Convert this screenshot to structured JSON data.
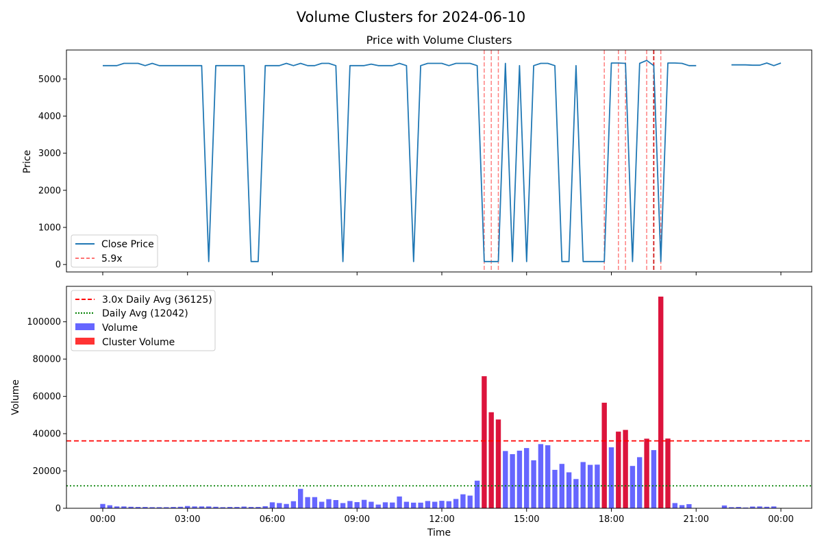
{
  "chart_data": [
    {
      "type": "line",
      "title": "Price with Volume Clusters",
      "ylabel": "Price",
      "ylim": [
        -200,
        5780
      ],
      "yticks": [
        0,
        1000,
        2000,
        3000,
        4000,
        5000
      ],
      "grid": false,
      "legend": {
        "placement": "lower-left",
        "entries": [
          "Close Price",
          "5.9x"
        ]
      },
      "series": [
        {
          "name": "Close Price",
          "color": "#1f77b4",
          "points": [
            [
              "00:00",
              5360
            ],
            [
              "00:15",
              5360
            ],
            [
              "00:30",
              5360
            ],
            [
              "00:45",
              5420
            ],
            [
              "01:00",
              5420
            ],
            [
              "01:15",
              5420
            ],
            [
              "01:30",
              5360
            ],
            [
              "01:45",
              5420
            ],
            [
              "02:00",
              5360
            ],
            [
              "02:15",
              5360
            ],
            [
              "02:30",
              5360
            ],
            [
              "02:45",
              5360
            ],
            [
              "03:00",
              5360
            ],
            [
              "03:15",
              5360
            ],
            [
              "03:30",
              5360
            ],
            [
              "03:45",
              80
            ],
            [
              "04:00",
              5360
            ],
            [
              "04:15",
              5360
            ],
            [
              "04:30",
              5360
            ],
            [
              "04:45",
              5360
            ],
            [
              "05:00",
              5360
            ],
            [
              "05:15",
              80
            ],
            [
              "05:30",
              80
            ],
            [
              "05:45",
              5360
            ],
            [
              "06:00",
              5360
            ],
            [
              "06:15",
              5360
            ],
            [
              "06:30",
              5420
            ],
            [
              "06:45",
              5360
            ],
            [
              "07:00",
              5420
            ],
            [
              "07:15",
              5360
            ],
            [
              "07:30",
              5360
            ],
            [
              "07:45",
              5420
            ],
            [
              "08:00",
              5420
            ],
            [
              "08:15",
              5360
            ],
            [
              "08:30",
              80
            ],
            [
              "08:45",
              5360
            ],
            [
              "09:00",
              5360
            ],
            [
              "09:15",
              5360
            ],
            [
              "09:30",
              5400
            ],
            [
              "09:45",
              5360
            ],
            [
              "10:00",
              5360
            ],
            [
              "10:15",
              5360
            ],
            [
              "10:30",
              5420
            ],
            [
              "10:45",
              5360
            ],
            [
              "11:00",
              80
            ],
            [
              "11:15",
              5360
            ],
            [
              "11:30",
              5420
            ],
            [
              "11:45",
              5420
            ],
            [
              "12:00",
              5420
            ],
            [
              "12:15",
              5360
            ],
            [
              "12:30",
              5420
            ],
            [
              "12:45",
              5420
            ],
            [
              "13:00",
              5420
            ],
            [
              "13:15",
              5360
            ],
            [
              "13:30",
              80
            ],
            [
              "13:45",
              80
            ],
            [
              "14:00",
              80
            ],
            [
              "14:15",
              5420
            ],
            [
              "14:30",
              80
            ],
            [
              "14:45",
              5360
            ],
            [
              "15:00",
              80
            ],
            [
              "15:15",
              5360
            ],
            [
              "15:30",
              5420
            ],
            [
              "15:45",
              5420
            ],
            [
              "16:00",
              5360
            ],
            [
              "16:15",
              80
            ],
            [
              "16:30",
              80
            ],
            [
              "16:45",
              5360
            ],
            [
              "17:00",
              80
            ],
            [
              "17:15",
              80
            ],
            [
              "17:30",
              80
            ],
            [
              "17:45",
              80
            ],
            [
              "18:00",
              5430
            ],
            [
              "18:15",
              5430
            ],
            [
              "18:30",
              5420
            ],
            [
              "18:45",
              80
            ],
            [
              "19:00",
              5420
            ],
            [
              "19:15",
              5500
            ],
            [
              "19:30",
              5360
            ],
            [
              "19:45",
              80
            ],
            [
              "20:00",
              5430
            ],
            [
              "20:15",
              5430
            ],
            [
              "20:30",
              5420
            ],
            [
              "20:45",
              5360
            ],
            [
              "21:00",
              5360
            ],
            [
              "21:15",
              null
            ],
            [
              "21:30",
              null
            ],
            [
              "21:45",
              null
            ],
            [
              "22:00",
              null
            ],
            [
              "22:15",
              5380
            ],
            [
              "22:30",
              5380
            ],
            [
              "22:45",
              5380
            ],
            [
              "23:00",
              5370
            ],
            [
              "23:15",
              5370
            ],
            [
              "23:30",
              5430
            ],
            [
              "23:45",
              5360
            ],
            [
              "24:00",
              5430
            ]
          ]
        }
      ],
      "cluster_lines": {
        "name": "5.9x",
        "color": "#ff0000",
        "times": [
          "13:45",
          "14:00",
          "14:15",
          "18:00",
          "18:30",
          "18:45",
          "19:30",
          "19:45",
          "20:00"
        ],
        "highlight_time": "19:45"
      }
    },
    {
      "type": "bar",
      "ylabel": "Volume",
      "xlabel": "Time",
      "ylim": [
        0,
        119000
      ],
      "yticks": [
        0,
        20000,
        40000,
        60000,
        80000,
        100000
      ],
      "xticks": [
        "00:00",
        "03:00",
        "06:00",
        "09:00",
        "12:00",
        "15:00",
        "18:00",
        "21:00",
        "00:00"
      ],
      "grid": false,
      "legend": {
        "placement": "top-left",
        "entries": [
          "3.0x Daily Avg (36125)",
          "Daily Avg (12042)",
          "Volume",
          "Cluster Volume"
        ]
      },
      "reference_lines": [
        {
          "name": "3.0x Daily Avg (36125)",
          "value": 36125,
          "color": "#ff0000",
          "style": "dashed"
        },
        {
          "name": "Daily Avg (12042)",
          "value": 12042,
          "color": "#008000",
          "style": "dotted"
        }
      ],
      "colors": {
        "volume": "#6666ff",
        "cluster": "#dc143c",
        "cluster_legend": "#ff3333"
      },
      "bars": [
        [
          "00:00",
          2300,
          0
        ],
        [
          "00:15",
          1600,
          0
        ],
        [
          "00:30",
          1000,
          0
        ],
        [
          "00:45",
          1000,
          0
        ],
        [
          "01:00",
          800,
          0
        ],
        [
          "01:15",
          700,
          0
        ],
        [
          "01:30",
          700,
          0
        ],
        [
          "01:45",
          600,
          0
        ],
        [
          "02:00",
          600,
          0
        ],
        [
          "02:15",
          600,
          0
        ],
        [
          "02:30",
          700,
          0
        ],
        [
          "02:45",
          800,
          0
        ],
        [
          "03:00",
          1200,
          0
        ],
        [
          "03:15",
          1000,
          0
        ],
        [
          "03:30",
          1000,
          0
        ],
        [
          "03:45",
          1000,
          0
        ],
        [
          "04:00",
          800,
          0
        ],
        [
          "04:15",
          600,
          0
        ],
        [
          "04:30",
          700,
          0
        ],
        [
          "04:45",
          700,
          0
        ],
        [
          "05:00",
          900,
          0
        ],
        [
          "05:15",
          700,
          0
        ],
        [
          "05:30",
          700,
          0
        ],
        [
          "05:45",
          1100,
          0
        ],
        [
          "06:00",
          3200,
          0
        ],
        [
          "06:15",
          2800,
          0
        ],
        [
          "06:30",
          2300,
          0
        ],
        [
          "06:45",
          3800,
          0
        ],
        [
          "07:00",
          10400,
          0
        ],
        [
          "07:15",
          6000,
          0
        ],
        [
          "07:30",
          6000,
          0
        ],
        [
          "07:45",
          3500,
          0
        ],
        [
          "08:00",
          4900,
          0
        ],
        [
          "08:15",
          4400,
          0
        ],
        [
          "08:30",
          2800,
          0
        ],
        [
          "08:45",
          3900,
          0
        ],
        [
          "09:00",
          3300,
          0
        ],
        [
          "09:15",
          4500,
          0
        ],
        [
          "09:30",
          3500,
          0
        ],
        [
          "09:45",
          2000,
          0
        ],
        [
          "10:00",
          3200,
          0
        ],
        [
          "10:15",
          3100,
          0
        ],
        [
          "10:30",
          6300,
          0
        ],
        [
          "10:45",
          3500,
          0
        ],
        [
          "11:00",
          3000,
          0
        ],
        [
          "11:15",
          3000,
          0
        ],
        [
          "11:30",
          3900,
          0
        ],
        [
          "11:45",
          3500,
          0
        ],
        [
          "12:00",
          4000,
          0
        ],
        [
          "12:15",
          3800,
          0
        ],
        [
          "12:30",
          5000,
          0
        ],
        [
          "12:45",
          7500,
          0
        ],
        [
          "13:00",
          6800,
          0
        ],
        [
          "13:15",
          14800,
          0
        ],
        [
          "13:30",
          70800,
          1
        ],
        [
          "13:45",
          51500,
          1
        ],
        [
          "14:00",
          47600,
          1
        ],
        [
          "14:15",
          30700,
          0
        ],
        [
          "14:30",
          29000,
          0
        ],
        [
          "14:45",
          30900,
          0
        ],
        [
          "15:00",
          32300,
          0
        ],
        [
          "15:15",
          25700,
          0
        ],
        [
          "15:30",
          34400,
          0
        ],
        [
          "15:45",
          33800,
          0
        ],
        [
          "16:00",
          20600,
          0
        ],
        [
          "16:15",
          23800,
          0
        ],
        [
          "16:30",
          19300,
          0
        ],
        [
          "16:45",
          15700,
          0
        ],
        [
          "17:00",
          24800,
          0
        ],
        [
          "17:15",
          23300,
          0
        ],
        [
          "17:30",
          23400,
          0
        ],
        [
          "17:45",
          56600,
          1
        ],
        [
          "18:00",
          32700,
          0
        ],
        [
          "18:15",
          41100,
          1
        ],
        [
          "18:30",
          42000,
          1
        ],
        [
          "18:45",
          22700,
          0
        ],
        [
          "19:00",
          27400,
          0
        ],
        [
          "19:15",
          37300,
          1
        ],
        [
          "19:30",
          31200,
          0
        ],
        [
          "19:45",
          113500,
          1
        ],
        [
          "20:00",
          37400,
          1
        ],
        [
          "20:15",
          2800,
          0
        ],
        [
          "20:30",
          1700,
          0
        ],
        [
          "20:45",
          2200,
          0
        ],
        [
          "22:00",
          1500,
          0
        ],
        [
          "22:15",
          600,
          0
        ],
        [
          "22:30",
          700,
          0
        ],
        [
          "22:45",
          400,
          0
        ],
        [
          "23:00",
          900,
          0
        ],
        [
          "23:15",
          1000,
          0
        ],
        [
          "23:30",
          800,
          0
        ],
        [
          "23:45",
          1000,
          0
        ]
      ]
    }
  ],
  "figure": {
    "suptitle": "Volume Clusters for 2024-06-10"
  }
}
